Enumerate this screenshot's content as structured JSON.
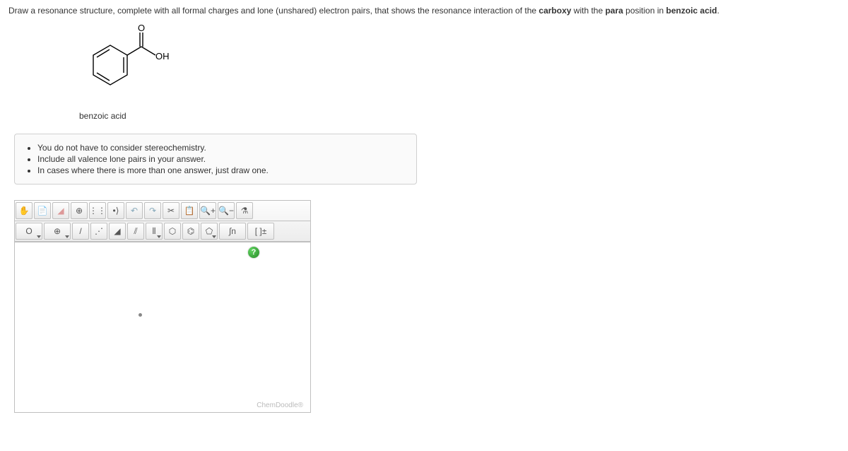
{
  "prompt": {
    "pre": "Draw a resonance structure, complete with all formal charges and lone (unshared) electron pairs, that shows the resonance interaction of the ",
    "b1": "carboxy",
    "mid1": " with the ",
    "b2": "para",
    "mid2": " position in ",
    "b3": "benzoic acid",
    "post": "."
  },
  "molecule": {
    "label": "benzoic acid",
    "atom_O": "O",
    "atom_OH": "OH"
  },
  "instructions": [
    "You do not have to consider stereochemistry.",
    "Include all valence lone pairs in your answer.",
    "In cases where there is more than one answer, just draw one."
  ],
  "toolbar": {
    "row1": [
      {
        "name": "move-icon",
        "glyph": "✋"
      },
      {
        "name": "open-icon",
        "glyph": "📄"
      },
      {
        "name": "erase-icon",
        "glyph": "◢",
        "color": "#d99"
      },
      {
        "name": "center-icon",
        "glyph": "⊕"
      },
      {
        "name": "lonepair-icon",
        "glyph": "⋮⋮"
      },
      {
        "name": "radical-icon",
        "glyph": "•⟩"
      },
      {
        "name": "undo-icon",
        "glyph": "↶",
        "color": "#8ab"
      },
      {
        "name": "redo-icon",
        "glyph": "↷",
        "color": "#8ab"
      },
      {
        "name": "cut-icon",
        "glyph": "✂"
      },
      {
        "name": "paste-icon",
        "glyph": "📋"
      },
      {
        "name": "zoomin-icon",
        "glyph": "🔍+"
      },
      {
        "name": "zoomout-icon",
        "glyph": "🔍−"
      },
      {
        "name": "clean-icon",
        "glyph": "⚗"
      }
    ],
    "row2": [
      {
        "name": "element-picker",
        "glyph": "O",
        "dd": true,
        "wider": true
      },
      {
        "name": "charge-picker",
        "glyph": "⊕",
        "dd": true,
        "wider": true
      },
      {
        "name": "single-bond-icon",
        "glyph": "/"
      },
      {
        "name": "dotted-bond-icon",
        "glyph": "⋰"
      },
      {
        "name": "wedge-bond-icon",
        "glyph": "◢"
      },
      {
        "name": "double-bond-icon",
        "glyph": "⫽"
      },
      {
        "name": "triple-bond-icon",
        "glyph": "⫴",
        "dd": true
      },
      {
        "name": "cyclohexane-icon",
        "glyph": "⬡"
      },
      {
        "name": "benzene-icon",
        "glyph": "⌬"
      },
      {
        "name": "cyclopentane-icon",
        "glyph": "⬠",
        "dd": true
      },
      {
        "name": "chain-icon",
        "glyph": "∫n",
        "wider": true
      },
      {
        "name": "bracket-charge-icon",
        "glyph": "[ ]±",
        "wider": true
      }
    ]
  },
  "canvas": {
    "help": "?",
    "watermark": "ChemDoodle®"
  },
  "colors": {
    "border": "#bfbfbf"
  }
}
